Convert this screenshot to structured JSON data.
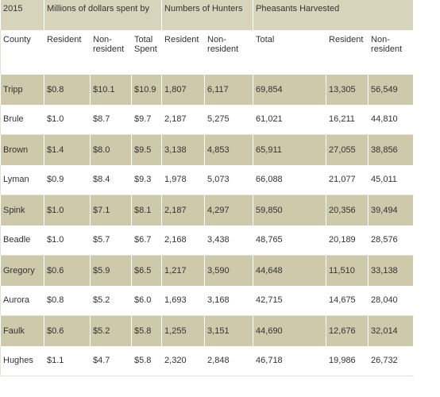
{
  "table": {
    "group_header": [
      "2015",
      "Millions of dollars spent by",
      "Numbers of Hunters",
      "Pheasants Harvested"
    ],
    "header": [
      "County",
      "Resident",
      "Non-resident",
      "Total Spent",
      "Resident",
      "Non-resident",
      "Total",
      "Resident",
      "Non-resident"
    ],
    "rows": [
      [
        "Tripp",
        "$0.8",
        "$10.1",
        "$10.9",
        "1,807",
        "6,117",
        "69,854",
        "13,305",
        "56,549"
      ],
      [
        "Brule",
        "$1.0",
        "$8.7",
        "$9.7",
        "2,187",
        "5,275",
        "61,021",
        "16,211",
        "44,810"
      ],
      [
        "Brown",
        "$1.4",
        "$8.0",
        "$9.5",
        "3,138",
        "4,853",
        "65,911",
        "27,055",
        "38,856"
      ],
      [
        "Lyman",
        "$0.9",
        "$8.4",
        "$9.3",
        "1,978",
        "5,073",
        "66,088",
        "21,077",
        "45,011"
      ],
      [
        "Spink",
        "$1.0",
        "$7.1",
        "$8.1",
        "2,187",
        "4,297",
        "59,850",
        "20,356",
        "39,494"
      ],
      [
        "Beadle",
        "$1.0",
        "$5.7",
        "$6.7",
        "2,168",
        "3,438",
        "48,765",
        "20,189",
        "28,576"
      ],
      [
        "Gregory",
        "$0.6",
        "$5.9",
        "$6.5",
        "1,217",
        "3,590",
        "44,648",
        "11,510",
        "33,138"
      ],
      [
        "Aurora",
        "$0.8",
        "$5.2",
        "$6.0",
        "1,693",
        "3,168",
        "42,715",
        "14,675",
        "28,040"
      ],
      [
        "Faulk",
        "$0.6",
        "$5.2",
        "$5.8",
        "1,255",
        "3,151",
        "44,690",
        "12,676",
        "32,014"
      ],
      [
        "Hughes",
        "$1.1",
        "$4.7",
        "$5.8",
        "2,320",
        "2,848",
        "46,718",
        "19,986",
        "26,732"
      ]
    ]
  }
}
